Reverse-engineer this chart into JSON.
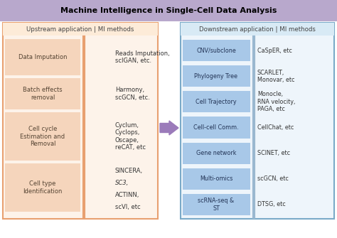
{
  "title": "Machine Intelligence in Single-Cell Data Analysis",
  "title_bg": "#b8a8cc",
  "upstream_header": "Upstream application | MI methods",
  "downstream_header": "Downstream application | MI methods",
  "upstream_outer_border": "#e8a070",
  "upstream_bg": "#fdf3ea",
  "upstream_hdr_bg": "#fdebd8",
  "downstream_outer_border": "#7aaac8",
  "downstream_bg": "#eef5fb",
  "downstream_hdr_bg": "#d8eaf5",
  "left_boxes": [
    {
      "label": "Data Imputation"
    },
    {
      "label": "Batch effects\nremoval"
    },
    {
      "label": "Cell cycle\nEstimation and\nRemoval"
    },
    {
      "label": "Cell type\nIdentification"
    }
  ],
  "left_box_color": "#f5d5bc",
  "left_methods": [
    "Reads Imputation,\nscIGAN, etc.",
    "Harmony,\nscGCN, etc.",
    "Cyclum,\nCyclops,\nOscape,\nreCAT, etc",
    "SINCERA,\nSC3,\nACTINN,\nscVI, etc"
  ],
  "left_methods_italic": [
    false,
    false,
    false,
    true
  ],
  "right_boxes": [
    {
      "label": "CNV/subclone"
    },
    {
      "label": "Phylogeny Tree"
    },
    {
      "label": "Cell Trajectory"
    },
    {
      "label": "Cell-cell Comm."
    },
    {
      "label": "Gene network"
    },
    {
      "label": "Multi-omics"
    },
    {
      "label": "scRNA-seq &\nST"
    }
  ],
  "right_box_color": "#a8c8e8",
  "right_methods": [
    "CaSpER, etc",
    "SCARLET,\nMonovar, etc",
    "Monocle,\nRNA velocity,\nPAGA, etc",
    "CellChat, etc",
    "SCINET, etc",
    "scGCN, etc",
    "DTSG, etc"
  ],
  "divider_color": "#9ab8d0",
  "left_divider_color": "#e8a070",
  "arrow_color": "#9b7bba",
  "figsize": [
    4.74,
    3.35
  ],
  "dpi": 100
}
